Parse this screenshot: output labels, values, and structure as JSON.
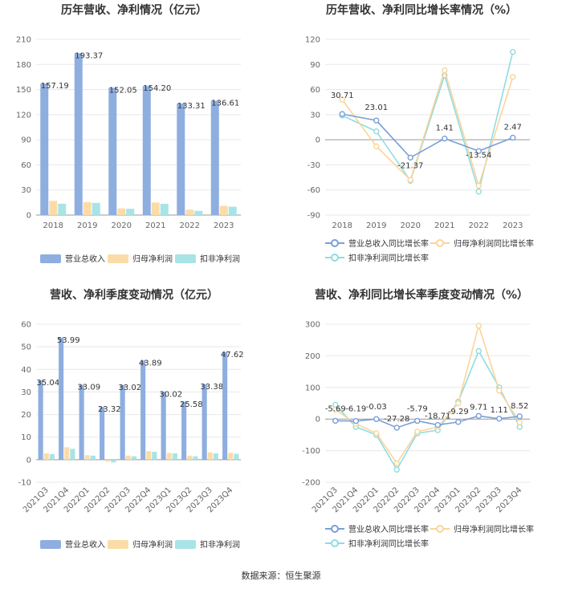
{
  "source": "数据来源：恒生聚源",
  "colors": {
    "revenue": "#8eaee0",
    "net": "#fbdca8",
    "deducted": "#a8e4e6",
    "line_rev": "#7a9fd8",
    "line_net": "#fbd49a",
    "line_ded": "#8fdde1"
  },
  "chart_data": [
    {
      "type": "bar",
      "title": "历年营收、净利情况（亿元）",
      "categories": [
        "2018",
        "2019",
        "2020",
        "2021",
        "2022",
        "2023"
      ],
      "ylim": [
        0,
        210
      ],
      "yticks": [
        "0",
        "30",
        "60",
        "90",
        "120",
        "150",
        "180",
        "210"
      ],
      "series": [
        {
          "name": "营业总收入",
          "values": [
            157.19,
            193.37,
            152.05,
            154.2,
            133.31,
            136.61
          ],
          "labels": [
            "157.19",
            "193.37",
            "152.05",
            "154.20",
            "133.31",
            "136.61"
          ]
        },
        {
          "name": "归母净利润",
          "values": [
            17.0,
            15.5,
            8.0,
            15.0,
            6.5,
            11.0
          ]
        },
        {
          "name": "扣非净利润",
          "values": [
            13.5,
            14.5,
            7.5,
            13.5,
            5.0,
            10.0
          ]
        }
      ]
    },
    {
      "type": "line",
      "title": "历年营收、净利同比增长率情况（%）",
      "categories": [
        "2018",
        "2019",
        "2020",
        "2021",
        "2022",
        "2023"
      ],
      "ylim": [
        -90,
        120
      ],
      "yticks": [
        "-90",
        "-60",
        "-30",
        "0",
        "30",
        "60",
        "90",
        "120"
      ],
      "series": [
        {
          "name": "营业总收入同比增长率",
          "values": [
            30.71,
            23.01,
            -21.37,
            1.41,
            -13.54,
            2.47
          ],
          "labels": [
            "30.71",
            "23.01",
            "-21.37",
            "1.41",
            "-13.54",
            "2.47"
          ]
        },
        {
          "name": "归母净利润同比增长率",
          "values": [
            48,
            -8,
            -48,
            83,
            -55,
            75
          ]
        },
        {
          "name": "扣非净利润同比增长率",
          "values": [
            29,
            10,
            -49,
            77,
            -62,
            105
          ]
        }
      ]
    },
    {
      "type": "bar",
      "title": "营收、净利季度变动情况（亿元）",
      "categories": [
        "2021Q3",
        "2021Q4",
        "2022Q1",
        "2022Q2",
        "2022Q3",
        "2022Q4",
        "2023Q1",
        "2023Q2",
        "2023Q3",
        "2023Q4"
      ],
      "ylim": [
        -10,
        60
      ],
      "yticks": [
        "-10",
        "0",
        "10",
        "20",
        "30",
        "40",
        "50",
        "60"
      ],
      "series": [
        {
          "name": "营业总收入",
          "values": [
            35.04,
            53.99,
            33.09,
            23.32,
            33.02,
            43.89,
            30.02,
            25.58,
            33.38,
            47.62
          ],
          "labels": [
            "35.04",
            "53.99",
            "33.09",
            "23.32",
            "33.02",
            "43.89",
            "30.02",
            "25.58",
            "33.38",
            "47.62"
          ]
        },
        {
          "name": "归母净利润",
          "values": [
            2.8,
            5.5,
            2.0,
            -0.8,
            1.8,
            3.8,
            3.0,
            1.8,
            3.2,
            3.0
          ]
        },
        {
          "name": "扣非净利润",
          "values": [
            2.5,
            4.8,
            1.8,
            -1.2,
            1.5,
            3.5,
            2.8,
            1.5,
            2.8,
            2.6
          ]
        }
      ]
    },
    {
      "type": "line",
      "title": "营收、净利同比增长率季度变动情况（%）",
      "categories": [
        "2021Q3",
        "2021Q4",
        "2022Q1",
        "2022Q2",
        "2022Q3",
        "2022Q4",
        "2023Q1",
        "2023Q2",
        "2023Q3",
        "2023Q4"
      ],
      "ylim": [
        -200,
        300
      ],
      "yticks": [
        "-200",
        "-100",
        "0",
        "100",
        "200",
        "300"
      ],
      "series": [
        {
          "name": "营业总收入同比增长率",
          "values": [
            -5.69,
            -6.19,
            -0.03,
            -27.28,
            -5.79,
            -18.71,
            -9.29,
            9.71,
            1.11,
            8.52
          ],
          "labels": [
            "-5.69",
            "-6.19",
            "-0.03",
            "-27.28",
            "-5.79",
            "-18.71",
            "-9.29",
            "9.71",
            "1.11",
            "8.52"
          ]
        },
        {
          "name": "归母净利润同比增长率",
          "values": [
            30,
            -15,
            -45,
            -140,
            -40,
            -25,
            50,
            295,
            90,
            -10
          ]
        },
        {
          "name": "扣非净利润同比增长率",
          "values": [
            45,
            -25,
            -50,
            -160,
            -45,
            -35,
            55,
            215,
            100,
            -25
          ]
        }
      ]
    }
  ]
}
